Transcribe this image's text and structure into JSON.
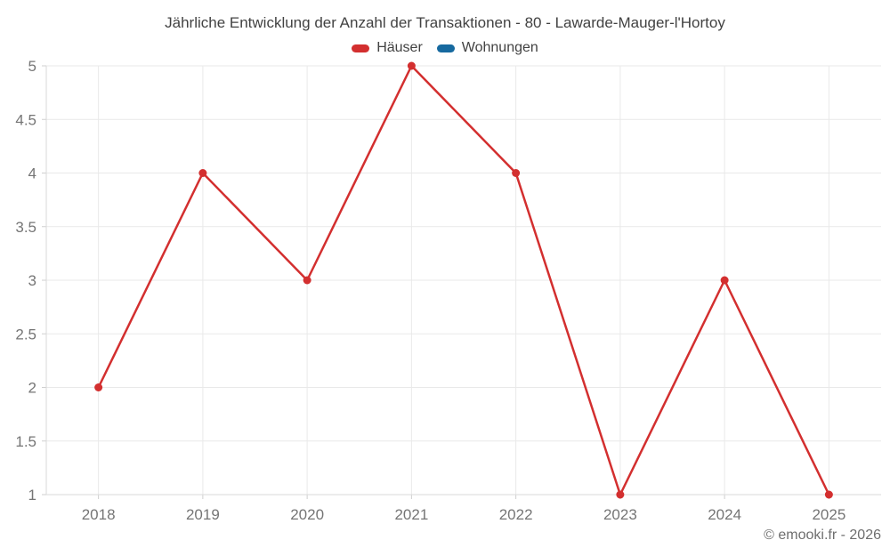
{
  "header": {
    "title": "Jährliche Entwicklung der Anzahl der Transaktionen - 80 - Lawarde-Mauger-l'Hortoy"
  },
  "legend": {
    "items": [
      {
        "label": "Häuser",
        "color": "#d32f2f"
      },
      {
        "label": "Wohnungen",
        "color": "#16699f"
      }
    ]
  },
  "footer": {
    "copyright": "© emooki.fr - 2026"
  },
  "colors": {
    "grid": "#e9e9e9",
    "axis": "#dadada",
    "tick": "#cfcfcf",
    "axis_label": "#757575",
    "title": "#424242"
  },
  "chart_data": {
    "type": "line",
    "title": "Jährliche Entwicklung der Anzahl der Transaktionen - 80 - Lawarde-Mauger-l'Hortoy",
    "categories": [
      "2018",
      "2019",
      "2020",
      "2021",
      "2022",
      "2023",
      "2024",
      "2025"
    ],
    "series": [
      {
        "name": "Häuser",
        "color": "#d32f2f",
        "values": [
          2,
          4,
          3,
          5,
          4,
          1,
          3,
          1
        ]
      },
      {
        "name": "Wohnungen",
        "color": "#16699f",
        "values": []
      }
    ],
    "xlabel": "",
    "ylabel": "",
    "ylim": [
      1,
      5
    ],
    "yticks": [
      1,
      1.5,
      2,
      2.5,
      3,
      3.5,
      4,
      4.5,
      5
    ],
    "grid": true,
    "legend_position": "top",
    "marker": "circle"
  }
}
